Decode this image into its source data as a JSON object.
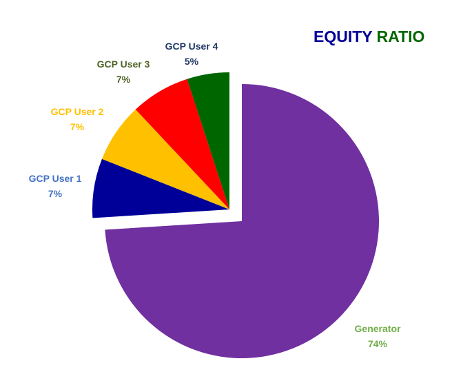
{
  "chart_data": {
    "type": "pie",
    "title": "EQUITY RATIO",
    "title_parts": [
      {
        "text": "EQUITY",
        "color": "#000099"
      },
      {
        "text": "RATIO",
        "color": "#006600"
      }
    ],
    "start_angle_deg": 0,
    "direction": "clockwise",
    "exploded": [
      "Generator"
    ],
    "legend": "none (data labels)",
    "slices": [
      {
        "label": "Generator",
        "value": 74,
        "display": "74%",
        "color": "#7030A0",
        "label_color": "#70AD47"
      },
      {
        "label": "GCP User 1",
        "value": 7,
        "display": "7%",
        "color": "#000099",
        "label_color": "#4472C4"
      },
      {
        "label": "GCP User 2",
        "value": 7,
        "display": "7%",
        "color": "#FFC000",
        "label_color": "#FFC000"
      },
      {
        "label": "GCP User 3",
        "value": 7,
        "display": "7%",
        "color": "#FF0000",
        "label_color": "#4F6228"
      },
      {
        "label": "GCP User 4",
        "value": 5,
        "display": "5%",
        "color": "#006600",
        "label_color": "#1F3864"
      }
    ]
  }
}
